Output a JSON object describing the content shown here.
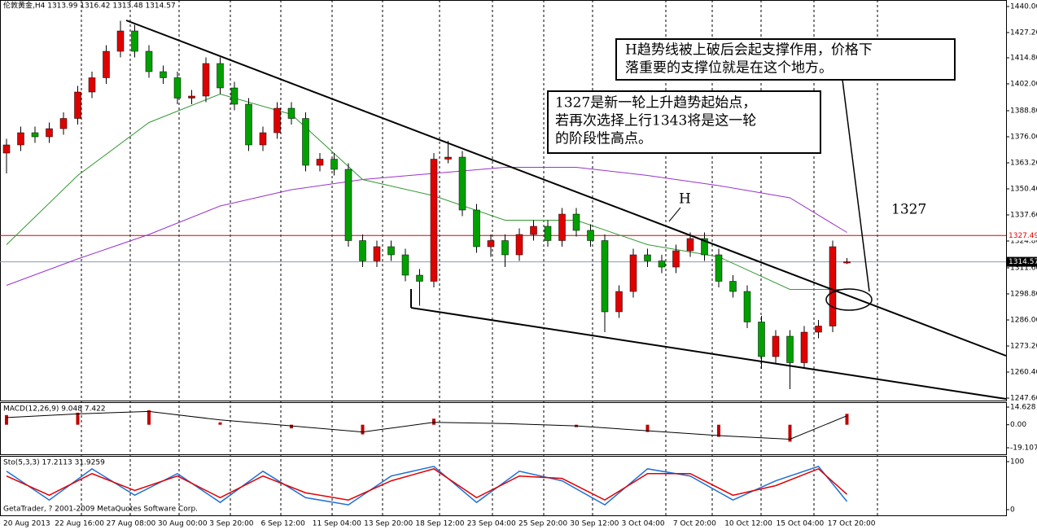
{
  "chart_data": {
    "type": "candlestick",
    "title": "伦敦黄金,H4 1313.99 1316.42 1313.48 1314.57",
    "up_color": "#e00000",
    "down_color": "#00a000",
    "open": [
      1368,
      1372,
      1378,
      1376,
      1380,
      1385,
      1398,
      1405,
      1418,
      1428,
      1418,
      1408,
      1405,
      1395,
      1396,
      1412,
      1400,
      1392,
      1372,
      1378,
      1390,
      1385,
      1362,
      1365,
      1360,
      1325,
      1315,
      1322,
      1318,
      1308,
      1305,
      1365,
      1366,
      1340,
      1322,
      1325,
      1318,
      1328,
      1332,
      1325,
      1338,
      1330,
      1325,
      1290,
      1300,
      1318,
      1315,
      1312,
      1320,
      1326,
      1318,
      1305,
      1300,
      1285,
      1268,
      1278,
      1265,
      1280,
      1283,
      1313.99
    ],
    "high": [
      1375,
      1381,
      1381,
      1383,
      1388,
      1401,
      1408,
      1421,
      1433,
      1431,
      1421,
      1411,
      1408,
      1399,
      1415,
      1415,
      1403,
      1395,
      1381,
      1393,
      1393,
      1388,
      1368,
      1368,
      1363,
      1328,
      1325,
      1325,
      1321,
      1311,
      1368,
      1374,
      1369,
      1343,
      1328,
      1328,
      1331,
      1335,
      1335,
      1341,
      1341,
      1333,
      1328,
      1303,
      1321,
      1321,
      1318,
      1323,
      1329,
      1329,
      1321,
      1308,
      1303,
      1288,
      1281,
      1281,
      1283,
      1286,
      1325,
      1316.42
    ],
    "low": [
      1358,
      1369,
      1373,
      1373,
      1377,
      1382,
      1395,
      1402,
      1415,
      1415,
      1405,
      1402,
      1392,
      1392,
      1393,
      1397,
      1389,
      1369,
      1369,
      1375,
      1382,
      1359,
      1359,
      1357,
      1322,
      1312,
      1312,
      1315,
      1305,
      1293,
      1302,
      1363,
      1337,
      1319,
      1317,
      1312,
      1315,
      1325,
      1322,
      1322,
      1327,
      1322,
      1280,
      1287,
      1297,
      1312,
      1309,
      1309,
      1317,
      1315,
      1302,
      1297,
      1282,
      1262,
      1265,
      1252,
      1262,
      1277,
      1280,
      1313.48
    ],
    "close": [
      1372,
      1378,
      1376,
      1380,
      1385,
      1398,
      1405,
      1418,
      1428,
      1418,
      1408,
      1405,
      1395,
      1396,
      1412,
      1400,
      1392,
      1372,
      1378,
      1390,
      1385,
      1362,
      1365,
      1360,
      1325,
      1315,
      1322,
      1318,
      1308,
      1305,
      1365,
      1366,
      1340,
      1322,
      1325,
      1318,
      1328,
      1332,
      1325,
      1338,
      1330,
      1325,
      1290,
      1300,
      1318,
      1315,
      1312,
      1320,
      1326,
      1318,
      1305,
      1300,
      1285,
      1268,
      1278,
      1265,
      1280,
      1283,
      1322,
      1314.57
    ],
    "ma_index": [
      0,
      5,
      10,
      15,
      20,
      25,
      30,
      35,
      40,
      45,
      50,
      55,
      59
    ],
    "ma_purple": [
      1303,
      1316,
      1328,
      1342,
      1350,
      1355,
      1358,
      1361,
      1361,
      1357,
      1352,
      1346,
      1329
    ],
    "ma_green": [
      1323,
      1357,
      1383,
      1397,
      1387,
      1355,
      1347,
      1335,
      1335,
      1323,
      1317,
      1301,
      1301
    ],
    "ylim": [
      1246.4,
      1443.2
    ],
    "yticks": [
      {
        "value": 1440,
        "label": "1440.00"
      },
      {
        "value": 1427.2,
        "label": "1427.20"
      },
      {
        "value": 1414.8,
        "label": "1414.80"
      },
      {
        "value": 1402,
        "label": "1402.00"
      },
      {
        "value": 1388.8,
        "label": "1388.80"
      },
      {
        "value": 1376,
        "label": "1376.00"
      },
      {
        "value": 1363.2,
        "label": "1363.20"
      },
      {
        "value": 1350.4,
        "label": "1350.40"
      },
      {
        "value": 1337.6,
        "label": "1337.60"
      },
      {
        "value": 1324.8,
        "label": "1324.80"
      },
      {
        "value": 1311.6,
        "label": "1311.60"
      },
      {
        "value": 1298.8,
        "label": "1298.80"
      },
      {
        "value": 1286,
        "label": "1286.00"
      },
      {
        "value": 1273.2,
        "label": "1273.20"
      },
      {
        "value": 1260.4,
        "label": "1260.40"
      },
      {
        "value": 1247.6,
        "label": "1247.60"
      }
    ],
    "level_lines": [
      {
        "value": 1327.49,
        "label": "1327.49",
        "color": "#e00000"
      },
      {
        "value": 1314.57,
        "label": "1314.57",
        "color": "#8899bb"
      }
    ],
    "categories": [
      "20 Aug 2013",
      "22 Aug 16:00",
      "27 Aug 08:00",
      "30 Aug 00:00",
      "3 Sep 20:00",
      "6 Sep 12:00",
      "11 Sep 04:00",
      "13 Sep 20:00",
      "18 Sep 12:00",
      "23 Sep 04:00",
      "25 Sep 20:00",
      "30 Sep 12:00",
      "3 Oct 04:00",
      "7 Oct 20:00",
      "10 Oct 12:00",
      "15 Oct 04:00",
      "17 Oct 20:00"
    ],
    "macd": {
      "title": "MACD(12,26,9) 9.048 7.422",
      "index": [
        0,
        5,
        10,
        15,
        20,
        25,
        30,
        35,
        40,
        45,
        50,
        55,
        59
      ],
      "main": [
        8,
        10,
        12,
        2,
        -3,
        -8,
        5,
        0,
        -2,
        -6,
        -10,
        -14,
        9.048
      ],
      "signal": [
        6,
        9,
        11,
        4,
        -1,
        -6,
        2,
        1,
        -1,
        -5,
        -9,
        -12,
        7.422
      ],
      "ylim": [
        -24.5,
        18.7
      ],
      "yticks": [
        {
          "value": 14.628,
          "label": "14.628"
        },
        {
          "value": 0,
          "label": "0.00"
        },
        {
          "value": -19.107,
          "label": "-19.107"
        }
      ]
    },
    "stoch": {
      "title": "Sto(5,3,3) 17.2113 31.9259",
      "index": [
        0,
        3,
        6,
        9,
        12,
        15,
        18,
        21,
        24,
        27,
        30,
        33,
        36,
        39,
        42,
        45,
        48,
        51,
        54,
        57,
        59
      ],
      "k": [
        80,
        20,
        85,
        30,
        75,
        15,
        80,
        25,
        10,
        70,
        90,
        15,
        80,
        60,
        10,
        85,
        70,
        20,
        60,
        90,
        17.2113
      ],
      "d": [
        70,
        30,
        75,
        40,
        70,
        25,
        70,
        35,
        20,
        60,
        85,
        25,
        70,
        65,
        20,
        75,
        75,
        30,
        50,
        85,
        31.9259
      ],
      "ylim": [
        0,
        100
      ],
      "yticks": [
        100,
        0
      ]
    },
    "copyright": "GetaTrader, ? 2001-2009 MetaQuotes Software Corp.",
    "annotations": {
      "box1": [
        "H趋势线被上破后会起支撑作用，价格下",
        "落重要的支撑位就是在这个地方。"
      ],
      "box2": [
        "1327是新一轮上升趋势起始点，",
        "若再次选择上行1343将是这一轮",
        "的阶段性高点。"
      ],
      "h_label": "H",
      "level_label": "1327"
    }
  }
}
